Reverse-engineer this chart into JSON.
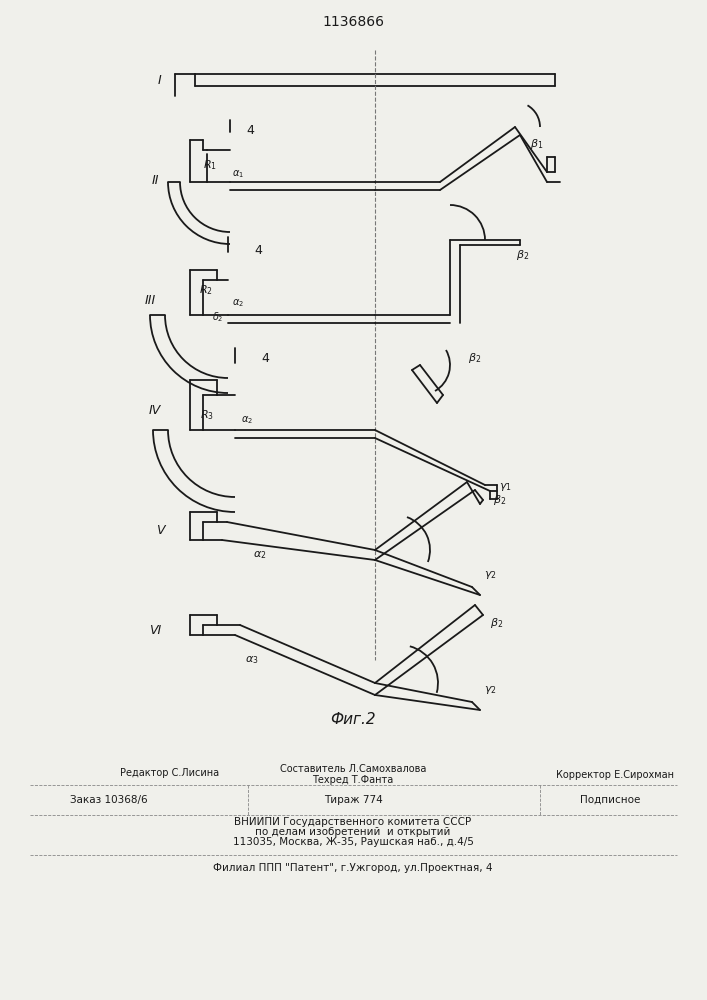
{
  "title": "1136866",
  "bg_color": "#f0f0eb",
  "line_color": "#1a1a1a",
  "lw": 1.3,
  "footer": {
    "editor": "Редактор С.Лисина",
    "composer": "Составитель Л.Самохвалова",
    "techred": "Техред Т.Фанта",
    "corrector": "Корректор Е.Сирохман",
    "order": "Заказ 10368/6",
    "tirazh": "Тираж 774",
    "podpisnoe": "Подписное",
    "vnipi1": "ВНИИПИ Государственного комитета СССР",
    "vnipi2": "по делам изобретений  и открытий",
    "vnipi3": "113035, Москва, Ж-35, Раушская наб., д.4/5",
    "filial": "Филиал ППП \"Патент\", г.Ужгород, ул.Проектная, 4"
  }
}
